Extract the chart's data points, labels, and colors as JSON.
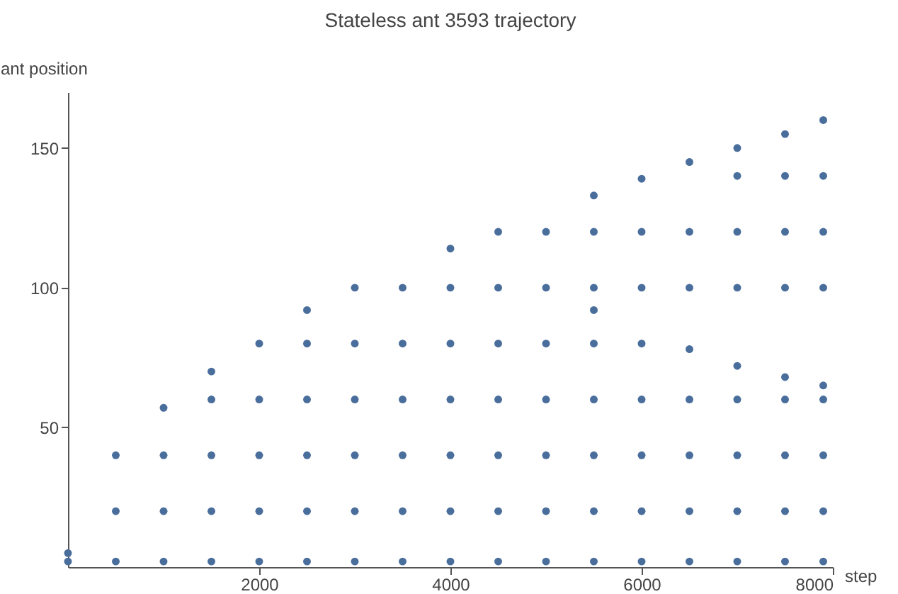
{
  "chart_data": {
    "type": "scatter",
    "title": "Stateless ant 3593 trajectory",
    "xlabel": "step",
    "ylabel": "ant position",
    "xlim": [
      0,
      8000
    ],
    "ylim": [
      0,
      170
    ],
    "xticks": [
      2000,
      4000,
      6000,
      8000
    ],
    "yticks": [
      50,
      100,
      150
    ],
    "grid": false,
    "marker": "circle",
    "series": [
      {
        "color": "#4a6e9c",
        "x": [
          0,
          0,
          500,
          500,
          500,
          1000,
          1000,
          1000,
          1000,
          1500,
          1500,
          1500,
          1500,
          1500,
          2000,
          2000,
          2000,
          2000,
          2000,
          2500,
          2500,
          2500,
          2500,
          2500,
          2500,
          3000,
          3000,
          3000,
          3000,
          3000,
          3000,
          3500,
          3500,
          3500,
          3500,
          3500,
          3500,
          4000,
          4000,
          4000,
          4000,
          4000,
          4000,
          4000,
          4500,
          4500,
          4500,
          4500,
          4500,
          4500,
          4500,
          5000,
          5000,
          5000,
          5000,
          5000,
          5000,
          5000,
          5500,
          5500,
          5500,
          5500,
          5500,
          5500,
          5500,
          5500,
          5500,
          6000,
          6000,
          6000,
          6000,
          6000,
          6000,
          6000,
          6000,
          6500,
          6500,
          6500,
          6500,
          6500,
          6500,
          6500,
          6500,
          7000,
          7000,
          7000,
          7000,
          7000,
          7000,
          7000,
          7000,
          7000,
          7500,
          7500,
          7500,
          7500,
          7500,
          7500,
          7500,
          7500,
          7500,
          7900,
          7900,
          7900,
          7900,
          7900,
          7900,
          7900,
          7900,
          7900
        ],
        "values": [
          2,
          5,
          2,
          20,
          40,
          2,
          20,
          40,
          57,
          2,
          20,
          40,
          60,
          70,
          2,
          20,
          40,
          60,
          80,
          2,
          20,
          40,
          60,
          80,
          92,
          2,
          20,
          40,
          60,
          80,
          100,
          2,
          20,
          40,
          60,
          80,
          100,
          2,
          20,
          40,
          60,
          80,
          100,
          114,
          2,
          20,
          40,
          60,
          80,
          100,
          120,
          2,
          20,
          40,
          60,
          80,
          100,
          120,
          2,
          20,
          40,
          60,
          80,
          92,
          100,
          120,
          133,
          2,
          20,
          40,
          60,
          80,
          100,
          120,
          139,
          2,
          20,
          40,
          60,
          78,
          100,
          120,
          145,
          2,
          20,
          40,
          60,
          72,
          100,
          120,
          140,
          150,
          2,
          20,
          40,
          60,
          68,
          100,
          120,
          140,
          155,
          2,
          20,
          40,
          60,
          65,
          100,
          120,
          140,
          160
        ]
      }
    ]
  }
}
